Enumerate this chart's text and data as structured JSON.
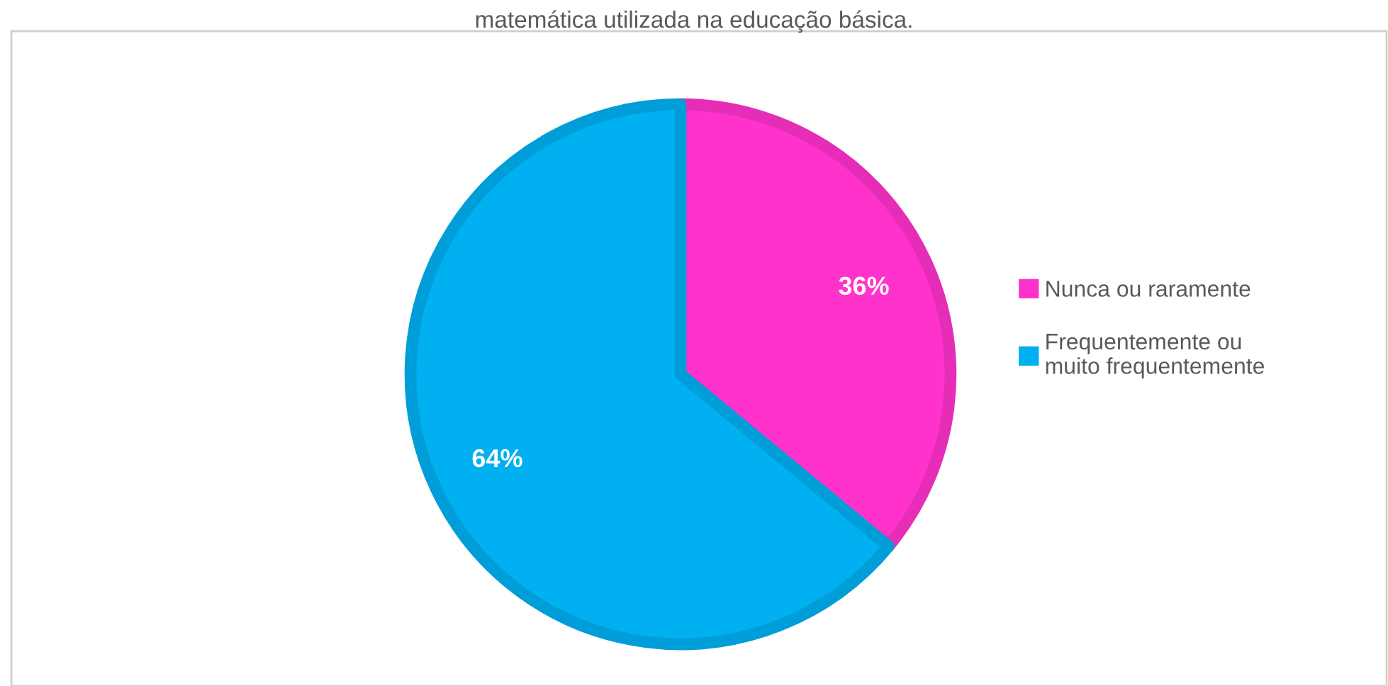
{
  "chart_data": {
    "type": "pie",
    "title": "matemática utilizada na educação básica.",
    "categories": [
      "Nunca ou raramente",
      "Frequentemente ou\nmuito frequentemente"
    ],
    "values": [
      36,
      64
    ],
    "colors": [
      "#ff33cc",
      "#00b0f0"
    ],
    "value_labels": [
      "36%",
      "64%"
    ],
    "legend": "right"
  }
}
